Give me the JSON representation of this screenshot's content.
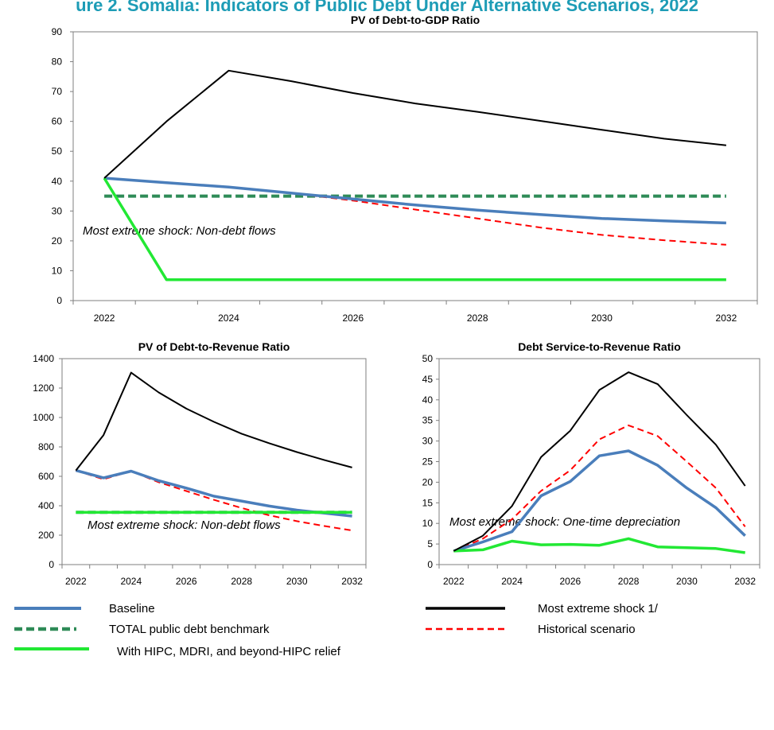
{
  "header": {
    "title": "ure 2. Somalia: Indicators of Public Debt Under Alternative Scenarios, 2022"
  },
  "colors": {
    "baseline": "#4a7ebb",
    "shock": "#000000",
    "benchmark": "#2e8b57",
    "historical": "#ff0000",
    "hipc": "#22e834"
  },
  "legend": [
    {
      "key": "baseline",
      "label": "Baseline"
    },
    {
      "key": "shock",
      "label": "Most extreme shock 1/"
    },
    {
      "key": "benchmark",
      "label": "TOTAL public debt benchmark"
    },
    {
      "key": "historical",
      "label": "Historical scenario"
    },
    {
      "key": "hipc",
      "label": "With HIPC, MDRI, and beyond-HIPC relief"
    }
  ],
  "chart_data": [
    {
      "type": "line",
      "title": "PV of Debt-to-GDP  Ratio",
      "annotation": "Most extreme  shock:  Non-debt  flows",
      "x": [
        2022,
        2023,
        2024,
        2025,
        2026,
        2027,
        2028,
        2029,
        2030,
        2031,
        2032
      ],
      "xticks": [
        "2022",
        "2024",
        "2026",
        "2028",
        "2030",
        "2032"
      ],
      "ylim": [
        0,
        90
      ],
      "yticks": [
        "0",
        "10",
        "20",
        "30",
        "40",
        "50",
        "60",
        "70",
        "80",
        "90"
      ],
      "grid": false,
      "series": [
        {
          "key": "baseline",
          "values": [
            41,
            39.5,
            38,
            36,
            34,
            32,
            30.3,
            28.8,
            27.5,
            26.7,
            26
          ]
        },
        {
          "key": "shock",
          "values": [
            41,
            60,
            77,
            73.5,
            69.5,
            66,
            63.2,
            60.2,
            57.2,
            54.2,
            52
          ]
        },
        {
          "key": "benchmark",
          "values": [
            35,
            35,
            35,
            35,
            35,
            35,
            35,
            35,
            35,
            35,
            35
          ]
        },
        {
          "key": "historical",
          "values": [
            41,
            39.5,
            38,
            36,
            33.5,
            30.5,
            27.5,
            24.5,
            22,
            20.2,
            18.7
          ]
        },
        {
          "key": "hipc",
          "values": [
            41,
            7,
            7,
            7,
            7,
            7,
            7,
            7,
            7,
            7,
            7
          ]
        }
      ]
    },
    {
      "type": "line",
      "title": "PV of Debt-to-Revenue  Ratio",
      "annotation": "Most extreme  shock:  Non-debt  flows",
      "x": [
        2022,
        2023,
        2024,
        2025,
        2026,
        2027,
        2028,
        2029,
        2030,
        2031,
        2032
      ],
      "xticks": [
        "2022",
        "2024",
        "2026",
        "2028",
        "2030",
        "2032"
      ],
      "ylim": [
        0,
        1400
      ],
      "yticks": [
        "0",
        "200",
        "400",
        "600",
        "800",
        "1000",
        "1200",
        "1400"
      ],
      "grid": false,
      "series": [
        {
          "key": "baseline",
          "values": [
            640,
            590,
            635,
            570,
            520,
            465,
            432,
            398,
            370,
            350,
            330
          ]
        },
        {
          "key": "shock",
          "values": [
            640,
            880,
            1305,
            1170,
            1060,
            970,
            890,
            825,
            765,
            710,
            660
          ]
        },
        {
          "key": "benchmark",
          "values": [
            355,
            355,
            355,
            355,
            355,
            355,
            355,
            355,
            355,
            355,
            355
          ]
        },
        {
          "key": "historical",
          "values": [
            640,
            580,
            635,
            560,
            500,
            440,
            385,
            335,
            295,
            262,
            232
          ]
        },
        {
          "key": "hipc",
          "values": [
            355,
            355,
            355,
            355,
            355,
            355,
            355,
            355,
            355,
            355,
            355
          ]
        }
      ]
    },
    {
      "type": "line",
      "title": "Debt Service-to-Revenue  Ratio",
      "annotation": "Most extreme  shock:  One-time  depreciation",
      "x": [
        2022,
        2023,
        2024,
        2025,
        2026,
        2027,
        2028,
        2029,
        2030,
        2031,
        2032
      ],
      "xticks": [
        "2022",
        "2024",
        "2026",
        "2028",
        "2030",
        "2032"
      ],
      "ylim": [
        0,
        50
      ],
      "yticks": [
        "0",
        "5",
        "10",
        "15",
        "20",
        "25",
        "30",
        "35",
        "40",
        "45",
        "50"
      ],
      "grid": false,
      "series": [
        {
          "key": "baseline",
          "values": [
            3.3,
            5.5,
            8,
            16.7,
            20.2,
            26.4,
            27.6,
            24.1,
            18.6,
            13.8,
            7
          ]
        },
        {
          "key": "shock",
          "values": [
            3.3,
            7,
            14.2,
            26.1,
            32.5,
            42.4,
            46.7,
            43.8,
            36.3,
            29.1,
            19.1
          ]
        },
        {
          "key": "historical",
          "values": [
            3.3,
            6.3,
            11,
            17.9,
            22.9,
            30.4,
            33.8,
            31.2,
            25,
            18.6,
            9.2
          ]
        },
        {
          "key": "hipc",
          "values": [
            3.3,
            3.6,
            5.7,
            4.8,
            4.9,
            4.7,
            6.3,
            4.3,
            4.1,
            3.9,
            2.9
          ]
        }
      ]
    }
  ]
}
